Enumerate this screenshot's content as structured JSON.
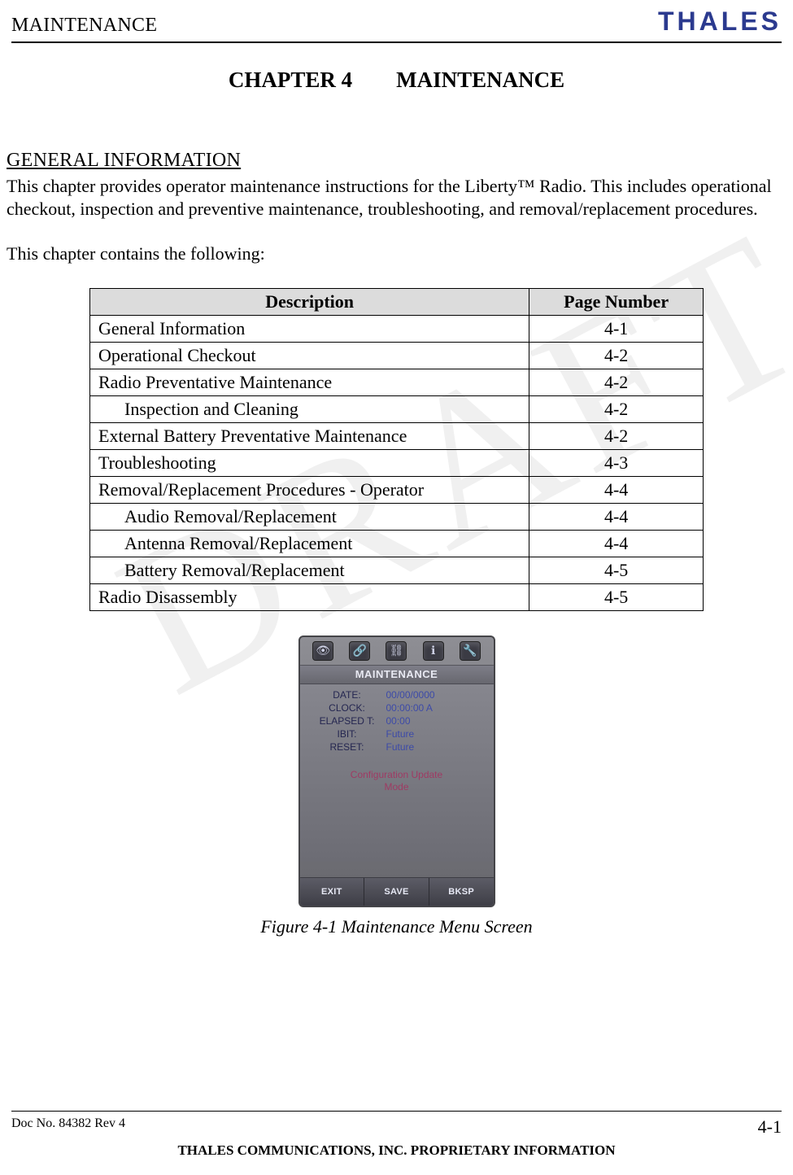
{
  "header": {
    "section_title": "MAINTENANCE",
    "logo_text": "THALES"
  },
  "chapter": {
    "label": "CHAPTER 4",
    "name": "MAINTENANCE"
  },
  "sections": {
    "gen_info_heading": "GENERAL INFORMATION",
    "intro_text": "This chapter provides operator maintenance instructions for the Liberty™ Radio.  This includes operational checkout, inspection and preventive maintenance, troubleshooting, and removal/replacement procedures.",
    "contains_text": "This chapter contains the following:"
  },
  "toc": {
    "columns": [
      "Description",
      "Page Number"
    ],
    "header_bg": "#dcdcdc",
    "border_color": "#000000",
    "font_size_pt": 16,
    "rows": [
      {
        "desc": "General Information",
        "page": "4-1",
        "indent": 0
      },
      {
        "desc": "Operational Checkout",
        "page": "4-2",
        "indent": 0
      },
      {
        "desc": "Radio Preventative Maintenance",
        "page": "4-2",
        "indent": 0
      },
      {
        "desc": "Inspection and Cleaning",
        "page": "4-2",
        "indent": 1
      },
      {
        "desc": "External Battery Preventative Maintenance",
        "page": "4-2",
        "indent": 0
      },
      {
        "desc": "Troubleshooting",
        "page": "4-3",
        "indent": 0
      },
      {
        "desc": "Removal/Replacement Procedures - Operator",
        "page": "4-4",
        "indent": 0
      },
      {
        "desc": "Audio Removal/Replacement",
        "page": "4-4",
        "indent": 1
      },
      {
        "desc": "Antenna Removal/Replacement",
        "page": "4-4",
        "indent": 1
      },
      {
        "desc": "Battery Removal/Replacement",
        "page": "4-5",
        "indent": 1
      },
      {
        "desc": "Radio Disassembly",
        "page": "4-5",
        "indent": 0
      }
    ]
  },
  "device": {
    "title": "MAINTENANCE",
    "top_icons": [
      "eye-icon",
      "chain-icon",
      "mast-icon",
      "info-icon",
      "wrench-icon"
    ],
    "fields": [
      {
        "k": "DATE:",
        "v": "00/00/0000"
      },
      {
        "k": "CLOCK:",
        "v": "00:00:00 A"
      },
      {
        "k": "ELAPSED T:",
        "v": "00:00"
      },
      {
        "k": "IBIT:",
        "v": "Future"
      },
      {
        "k": "RESET:",
        "v": "Future"
      }
    ],
    "config_line1": "Configuration Update",
    "config_line2": "Mode",
    "buttons": [
      "EXIT",
      "SAVE",
      "BKSP"
    ],
    "colors": {
      "body_bg_top": "#8e8e94",
      "body_bg_bottom": "#66666c",
      "label_color": "#242650",
      "value_color": "#3c4aa8",
      "config_color": "#9f3a63",
      "button_text": "#e6e8f4"
    }
  },
  "figure_caption": "Figure 4-1  Maintenance Menu Screen",
  "footer": {
    "doc_no": "Doc No. 84382 Rev 4",
    "page_no": "4-1",
    "proprietary": "THALES COMMUNICATIONS, INC. PROPRIETARY INFORMATION"
  },
  "watermark": "DRAFT"
}
